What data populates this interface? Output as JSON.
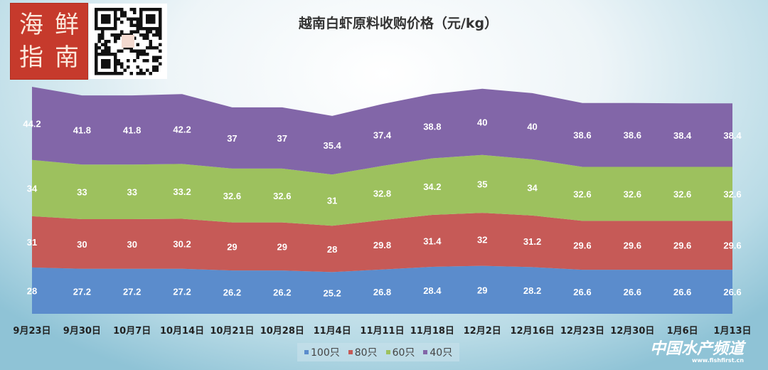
{
  "logo": {
    "text": [
      "海",
      "鲜",
      "指",
      "南"
    ]
  },
  "watermark": {
    "name": "中国水产频道",
    "url": "www.fishfirst.cn"
  },
  "chart_data": {
    "type": "area",
    "stacked": true,
    "title": "越南白虾原料收购价格（元/kg）",
    "categories": [
      "9月23日",
      "9月30日",
      "10月7日",
      "10月14日",
      "10月21日",
      "10月28日",
      "11月4日",
      "11月11日",
      "11月18日",
      "12月2日",
      "12月16日",
      "12月23日",
      "12月30日",
      "1月6日",
      "1月13日"
    ],
    "series": [
      {
        "name": "100只",
        "color": "#5b8ccc",
        "values": [
          28,
          27.2,
          27.2,
          27.2,
          26.2,
          26.2,
          25.2,
          26.8,
          28.4,
          29,
          28.2,
          26.6,
          26.6,
          26.6,
          26.6
        ]
      },
      {
        "name": "80只",
        "color": "#c65a57",
        "values": [
          31,
          30,
          30,
          30.2,
          29,
          29,
          28,
          29.8,
          31.4,
          32,
          31.2,
          29.6,
          29.6,
          29.6,
          29.6
        ]
      },
      {
        "name": "60只",
        "color": "#9dc15e",
        "values": [
          34,
          33,
          33,
          33.2,
          32.6,
          32.6,
          31,
          32.8,
          34.2,
          35,
          34,
          32.6,
          32.6,
          32.6,
          32.6
        ]
      },
      {
        "name": "40只",
        "color": "#8266a8",
        "values": [
          44.2,
          41.8,
          41.8,
          42.2,
          37,
          37,
          35.4,
          37.4,
          38.8,
          40,
          40,
          38.6,
          38.6,
          38.4,
          38.4
        ]
      }
    ],
    "data_labels": true,
    "grid": false,
    "legend": "bottom"
  }
}
